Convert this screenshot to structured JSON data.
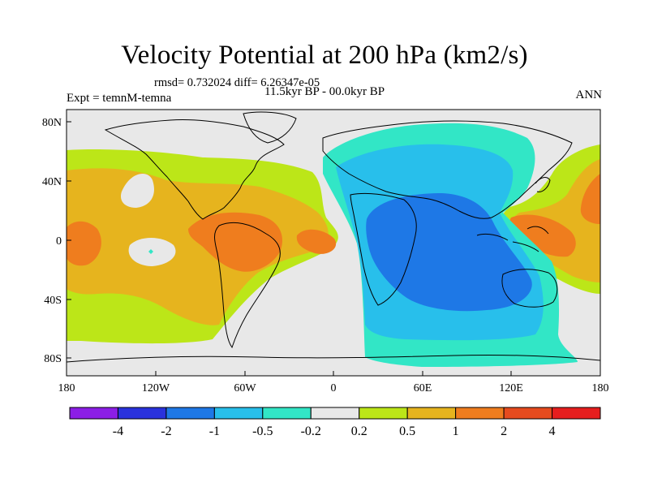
{
  "figure": {
    "title": "Velocity Potential at 200 hPa (km2/s)",
    "stats": "rmsd= 0.732024 diff= 6.26347e-05",
    "period": "11.5kyr BP - 00.0kyr BP",
    "experiment": "Expt = temnM-temna",
    "season": "ANN"
  },
  "axes": {
    "x_ticks": [
      "180",
      "120W",
      "60W",
      "0",
      "60E",
      "120E",
      "180"
    ],
    "y_ticks": [
      "80N",
      "40N",
      "0",
      "40S",
      "80S"
    ]
  },
  "colorbar": {
    "colors": [
      "#8c1ee6",
      "#2a32dc",
      "#1e78e6",
      "#28bfeb",
      "#32e6c6",
      "#e8e8e8",
      "#bce618",
      "#e6b41e",
      "#ef7d1e",
      "#e64b1e",
      "#e61e1e"
    ],
    "labels": [
      "-4",
      "-2",
      "-1",
      "-0.5",
      "-0.2",
      "0.2",
      "0.5",
      "1",
      "2",
      "4"
    ]
  },
  "chart_data": {
    "type": "heatmap",
    "title": "Velocity Potential at 200 hPa (km2/s)",
    "projection": "cylindrical equidistant",
    "lon_range": [
      -180,
      180
    ],
    "lat_range": [
      -90,
      90
    ],
    "levels": [
      -4,
      -2,
      -1,
      -0.5,
      -0.2,
      0.2,
      0.5,
      1,
      2,
      4
    ],
    "extrema": [
      {
        "region": "Indian Ocean / Africa",
        "level_range": [
          -2,
          -1
        ]
      },
      {
        "region": "tropical South America / Atlantic",
        "level_range": [
          1,
          2
        ]
      },
      {
        "region": "central Pacific",
        "level_range": [
          1,
          2
        ]
      },
      {
        "region": "western Pacific",
        "level_range": [
          1,
          2
        ]
      }
    ]
  }
}
